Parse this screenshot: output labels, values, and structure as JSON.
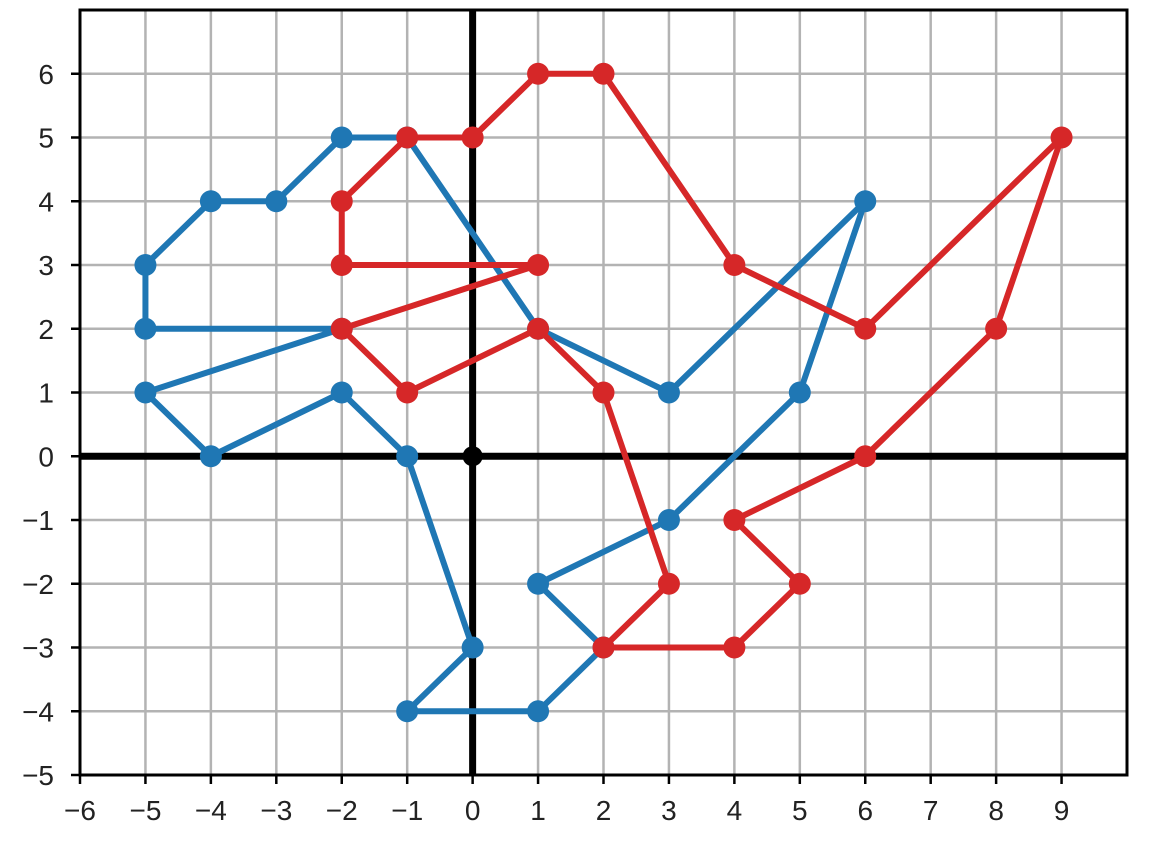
{
  "chart_data": {
    "type": "line",
    "title": "",
    "xlabel": "",
    "ylabel": "",
    "xlim": [
      -6,
      10
    ],
    "ylim": [
      -5,
      7
    ],
    "x_ticks": [
      -6,
      -5,
      -4,
      -3,
      -2,
      -1,
      0,
      1,
      2,
      3,
      4,
      5,
      6,
      7,
      8,
      9
    ],
    "y_ticks": [
      -5,
      -4,
      -3,
      -2,
      -1,
      0,
      1,
      2,
      3,
      4,
      5,
      6
    ],
    "x_tick_labels": [
      "−6",
      "−5",
      "−4",
      "−3",
      "−2",
      "−1",
      "0",
      "1",
      "2",
      "3",
      "4",
      "5",
      "6",
      "7",
      "8",
      "9"
    ],
    "y_tick_labels": [
      "−5",
      "−4",
      "−3",
      "−2",
      "−1",
      "0",
      "1",
      "2",
      "3",
      "4",
      "5",
      "6"
    ],
    "grid": true,
    "origin_marker": {
      "x": 0,
      "y": 0,
      "color": "#000000"
    },
    "series": [
      {
        "color": "#1f77b4",
        "points": [
          [
            -2,
            2
          ],
          [
            -5,
            2
          ],
          [
            -5,
            3
          ],
          [
            -4,
            4
          ],
          [
            -3,
            4
          ],
          [
            -2,
            5
          ],
          [
            -1,
            5
          ],
          [
            1,
            2
          ],
          [
            3,
            1
          ],
          [
            6,
            4
          ],
          [
            5,
            1
          ],
          [
            3,
            -1
          ],
          [
            1,
            -2
          ],
          [
            2,
            -3
          ],
          [
            1,
            -4
          ],
          [
            -1,
            -4
          ],
          [
            0,
            -3
          ],
          [
            -1,
            0
          ],
          [
            -2,
            1
          ],
          [
            -4,
            0
          ],
          [
            -5,
            1
          ],
          [
            -2,
            2
          ]
        ]
      },
      {
        "color": "#d62728",
        "points": [
          [
            1,
            3
          ],
          [
            -2,
            3
          ],
          [
            -2,
            4
          ],
          [
            -1,
            5
          ],
          [
            0,
            5
          ],
          [
            1,
            6
          ],
          [
            2,
            6
          ],
          [
            4,
            3
          ],
          [
            6,
            2
          ],
          [
            9,
            5
          ],
          [
            8,
            2
          ],
          [
            6,
            0
          ],
          [
            4,
            -1
          ],
          [
            5,
            -2
          ],
          [
            4,
            -3
          ],
          [
            2,
            -3
          ],
          [
            3,
            -2
          ],
          [
            2,
            1
          ],
          [
            1,
            2
          ],
          [
            -1,
            1
          ],
          [
            -2,
            2
          ],
          [
            1,
            3
          ]
        ]
      }
    ]
  }
}
